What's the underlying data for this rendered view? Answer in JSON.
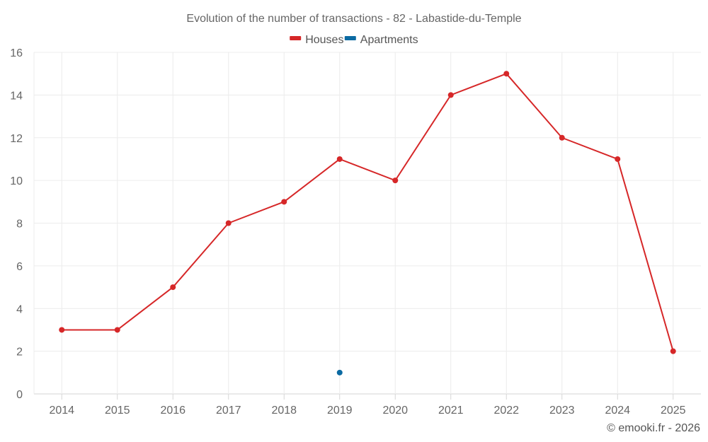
{
  "chart_data": {
    "type": "line",
    "title": "Evolution of the number of transactions - 82 - Labastide-du-Temple",
    "xlabel": "",
    "ylabel": "",
    "categories": [
      "2014",
      "2015",
      "2016",
      "2017",
      "2018",
      "2019",
      "2020",
      "2021",
      "2022",
      "2023",
      "2024",
      "2025"
    ],
    "ylim": [
      0,
      16
    ],
    "yticks": [
      0,
      2,
      4,
      6,
      8,
      10,
      12,
      14,
      16
    ],
    "grid": true,
    "legend": "top-center",
    "series": [
      {
        "name": "Houses",
        "color": "#d62728",
        "values": [
          3,
          3,
          5,
          8,
          9,
          11,
          10,
          14,
          15,
          12,
          11,
          2
        ]
      },
      {
        "name": "Apartments",
        "color": "#0b6aa2",
        "values": [
          null,
          null,
          null,
          null,
          null,
          1,
          null,
          null,
          null,
          null,
          null,
          null
        ]
      }
    ],
    "credit": "© emooki.fr - 2026"
  }
}
